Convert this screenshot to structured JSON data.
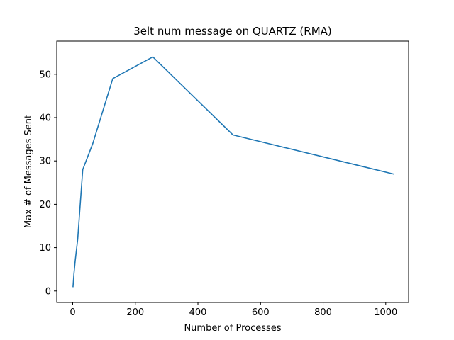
{
  "chart_data": {
    "type": "line",
    "title": "3elt num message on QUARTZ (RMA)",
    "xlabel": "Number of Processes",
    "ylabel": "Max # of Messages Sent",
    "xlim": [
      -51,
      1073
    ],
    "ylim": [
      -2.65,
      57.65
    ],
    "xticks": [
      0,
      200,
      400,
      600,
      800,
      1000
    ],
    "yticks": [
      0,
      10,
      20,
      30,
      40,
      50
    ],
    "grid": false,
    "series": [
      {
        "color": "#1f77b4",
        "x": [
          1,
          2,
          4,
          8,
          16,
          32,
          64,
          128,
          256,
          512,
          1024
        ],
        "y": [
          1,
          2,
          4,
          7,
          12,
          28,
          34,
          49,
          54,
          36,
          27
        ]
      }
    ]
  }
}
